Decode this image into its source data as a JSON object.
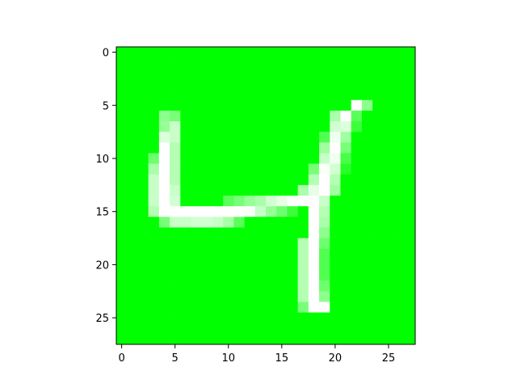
{
  "chart_data": {
    "type": "heatmap",
    "title": "",
    "xlabel": "",
    "ylabel": "",
    "rows": 28,
    "cols": 28,
    "xlim": [
      -0.5,
      27.5
    ],
    "ylim": [
      27.5,
      -0.5
    ],
    "y_axis_inverted": true,
    "grid": false,
    "xticks": [
      0,
      5,
      10,
      15,
      20,
      25
    ],
    "yticks": [
      0,
      5,
      10,
      15,
      20,
      25
    ],
    "xtick_labels": [
      "0",
      "5",
      "10",
      "15",
      "20",
      "25"
    ],
    "ytick_labels": [
      "0",
      "5",
      "10",
      "15",
      "20",
      "25"
    ],
    "colormap": {
      "low": "#00ff00",
      "high": "#ffffff"
    },
    "value_range": [
      0,
      255
    ],
    "values": [
      [
        0,
        0,
        0,
        0,
        0,
        0,
        0,
        0,
        0,
        0,
        0,
        0,
        0,
        0,
        0,
        0,
        0,
        0,
        0,
        0,
        0,
        0,
        0,
        0,
        0,
        0,
        0,
        0
      ],
      [
        0,
        0,
        0,
        0,
        0,
        0,
        0,
        0,
        0,
        0,
        0,
        0,
        0,
        0,
        0,
        0,
        0,
        0,
        0,
        0,
        0,
        0,
        0,
        0,
        0,
        0,
        0,
        0
      ],
      [
        0,
        0,
        0,
        0,
        0,
        0,
        0,
        0,
        0,
        0,
        0,
        0,
        0,
        0,
        0,
        0,
        0,
        0,
        0,
        0,
        0,
        0,
        0,
        0,
        0,
        0,
        0,
        0
      ],
      [
        0,
        0,
        0,
        0,
        0,
        0,
        0,
        0,
        0,
        0,
        0,
        0,
        0,
        0,
        0,
        0,
        0,
        0,
        0,
        0,
        0,
        0,
        0,
        0,
        0,
        0,
        0,
        0
      ],
      [
        0,
        0,
        0,
        0,
        0,
        0,
        0,
        0,
        0,
        0,
        0,
        0,
        0,
        0,
        0,
        0,
        0,
        0,
        0,
        0,
        0,
        0,
        0,
        0,
        0,
        0,
        0,
        0
      ],
      [
        0,
        0,
        0,
        0,
        0,
        0,
        0,
        0,
        0,
        0,
        0,
        0,
        0,
        0,
        0,
        0,
        0,
        0,
        0,
        0,
        0,
        0,
        255,
        140,
        0,
        0,
        0,
        0
      ],
      [
        0,
        0,
        0,
        0,
        140,
        120,
        0,
        0,
        0,
        0,
        0,
        0,
        0,
        0,
        0,
        0,
        0,
        0,
        0,
        0,
        170,
        255,
        90,
        0,
        0,
        0,
        0,
        0
      ],
      [
        0,
        0,
        0,
        0,
        150,
        200,
        0,
        0,
        0,
        0,
        0,
        0,
        0,
        0,
        0,
        0,
        0,
        0,
        0,
        0,
        210,
        220,
        60,
        0,
        0,
        0,
        0,
        0
      ],
      [
        0,
        0,
        0,
        0,
        220,
        200,
        0,
        0,
        0,
        0,
        0,
        0,
        0,
        0,
        0,
        0,
        0,
        0,
        0,
        80,
        240,
        160,
        0,
        0,
        0,
        0,
        0,
        0
      ],
      [
        0,
        0,
        0,
        0,
        255,
        180,
        0,
        0,
        0,
        0,
        0,
        0,
        0,
        0,
        0,
        0,
        0,
        0,
        0,
        160,
        255,
        120,
        0,
        0,
        0,
        0,
        0,
        0
      ],
      [
        0,
        0,
        0,
        110,
        255,
        180,
        0,
        0,
        0,
        0,
        0,
        0,
        0,
        0,
        0,
        0,
        0,
        0,
        0,
        200,
        240,
        70,
        0,
        0,
        0,
        0,
        0,
        0
      ],
      [
        0,
        0,
        0,
        170,
        255,
        180,
        0,
        0,
        0,
        0,
        0,
        0,
        0,
        0,
        0,
        0,
        0,
        0,
        120,
        250,
        210,
        40,
        0,
        0,
        0,
        0,
        0,
        0
      ],
      [
        0,
        0,
        0,
        200,
        255,
        180,
        0,
        0,
        0,
        0,
        0,
        0,
        0,
        0,
        0,
        0,
        0,
        0,
        180,
        255,
        180,
        0,
        0,
        0,
        0,
        0,
        0,
        0
      ],
      [
        0,
        0,
        0,
        200,
        255,
        200,
        0,
        0,
        0,
        0,
        0,
        0,
        0,
        0,
        0,
        0,
        0,
        170,
        230,
        255,
        160,
        0,
        0,
        0,
        0,
        0,
        0,
        0
      ],
      [
        0,
        0,
        0,
        200,
        255,
        210,
        0,
        0,
        0,
        0,
        90,
        120,
        150,
        170,
        210,
        230,
        250,
        255,
        255,
        200,
        0,
        0,
        0,
        0,
        0,
        0,
        0,
        0
      ],
      [
        0,
        0,
        0,
        180,
        255,
        255,
        255,
        255,
        255,
        255,
        255,
        255,
        250,
        200,
        150,
        110,
        60,
        0,
        255,
        180,
        0,
        0,
        0,
        0,
        0,
        0,
        0,
        0
      ],
      [
        0,
        0,
        0,
        0,
        120,
        200,
        200,
        210,
        210,
        200,
        170,
        90,
        0,
        0,
        0,
        0,
        0,
        0,
        255,
        170,
        0,
        0,
        0,
        0,
        0,
        0,
        0,
        0
      ],
      [
        0,
        0,
        0,
        0,
        0,
        0,
        0,
        0,
        0,
        0,
        0,
        0,
        0,
        0,
        0,
        0,
        0,
        0,
        255,
        140,
        0,
        0,
        0,
        0,
        0,
        0,
        0,
        0
      ],
      [
        0,
        0,
        0,
        0,
        0,
        0,
        0,
        0,
        0,
        0,
        0,
        0,
        0,
        0,
        0,
        0,
        0,
        180,
        255,
        110,
        0,
        0,
        0,
        0,
        0,
        0,
        0,
        0
      ],
      [
        0,
        0,
        0,
        0,
        0,
        0,
        0,
        0,
        0,
        0,
        0,
        0,
        0,
        0,
        0,
        0,
        0,
        180,
        255,
        80,
        0,
        0,
        0,
        0,
        0,
        0,
        0,
        0
      ],
      [
        0,
        0,
        0,
        0,
        0,
        0,
        0,
        0,
        0,
        0,
        0,
        0,
        0,
        0,
        0,
        0,
        0,
        180,
        255,
        80,
        0,
        0,
        0,
        0,
        0,
        0,
        0,
        0
      ],
      [
        0,
        0,
        0,
        0,
        0,
        0,
        0,
        0,
        0,
        0,
        0,
        0,
        0,
        0,
        0,
        0,
        0,
        180,
        255,
        80,
        0,
        0,
        0,
        0,
        0,
        0,
        0,
        0
      ],
      [
        0,
        0,
        0,
        0,
        0,
        0,
        0,
        0,
        0,
        0,
        0,
        0,
        0,
        0,
        0,
        0,
        0,
        180,
        255,
        110,
        0,
        0,
        0,
        0,
        0,
        0,
        0,
        0
      ],
      [
        0,
        0,
        0,
        0,
        0,
        0,
        0,
        0,
        0,
        0,
        0,
        0,
        0,
        0,
        0,
        0,
        0,
        180,
        255,
        140,
        0,
        0,
        0,
        0,
        0,
        0,
        0,
        0
      ],
      [
        0,
        0,
        0,
        0,
        0,
        0,
        0,
        0,
        0,
        0,
        0,
        0,
        0,
        0,
        0,
        0,
        0,
        120,
        255,
        255,
        0,
        0,
        0,
        0,
        0,
        0,
        0,
        0
      ],
      [
        0,
        0,
        0,
        0,
        0,
        0,
        0,
        0,
        0,
        0,
        0,
        0,
        0,
        0,
        0,
        0,
        0,
        0,
        0,
        0,
        0,
        0,
        0,
        0,
        0,
        0,
        0,
        0
      ],
      [
        0,
        0,
        0,
        0,
        0,
        0,
        0,
        0,
        0,
        0,
        0,
        0,
        0,
        0,
        0,
        0,
        0,
        0,
        0,
        0,
        0,
        0,
        0,
        0,
        0,
        0,
        0,
        0
      ],
      [
        0,
        0,
        0,
        0,
        0,
        0,
        0,
        0,
        0,
        0,
        0,
        0,
        0,
        0,
        0,
        0,
        0,
        0,
        0,
        0,
        0,
        0,
        0,
        0,
        0,
        0,
        0,
        0
      ]
    ]
  }
}
